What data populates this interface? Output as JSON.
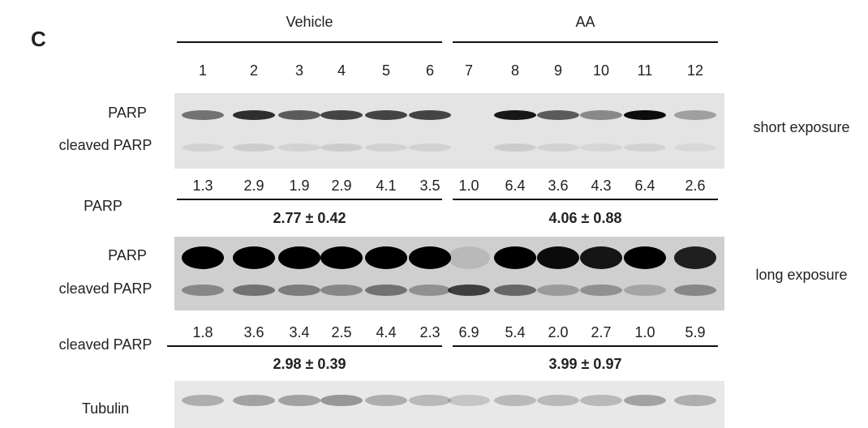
{
  "panel_label": "C",
  "groups": [
    {
      "label": "Vehicle"
    },
    {
      "label": "AA"
    }
  ],
  "lanes": [
    "1",
    "2",
    "3",
    "4",
    "5",
    "6",
    "7",
    "8",
    "9",
    "10",
    "11",
    "12"
  ],
  "blots": [
    {
      "labels": [
        "PARP",
        "cleaved PARP"
      ],
      "exposure": "short exposure"
    },
    {
      "labels": [
        "PARP",
        "cleaved PARP"
      ],
      "exposure": "long exposure"
    },
    {
      "labels": [
        "Tubulin"
      ]
    }
  ],
  "quantifications": [
    {
      "label": "PARP",
      "values": [
        "1.3",
        "2.9",
        "1.9",
        "2.9",
        "4.1",
        "3.5",
        "1.0",
        "6.4",
        "3.6",
        "4.3",
        "6.4",
        "2.6"
      ],
      "means": [
        "2.77 ± 0.42",
        "4.06 ± 0.88"
      ]
    },
    {
      "label": "cleaved PARP",
      "values": [
        "1.8",
        "3.6",
        "3.4",
        "2.5",
        "4.4",
        "2.3",
        "6.9",
        "5.4",
        "2.0",
        "2.7",
        "1.0",
        "5.9"
      ],
      "means": [
        "2.98 ± 0.39",
        "3.99 ± 0.97"
      ]
    }
  ]
}
